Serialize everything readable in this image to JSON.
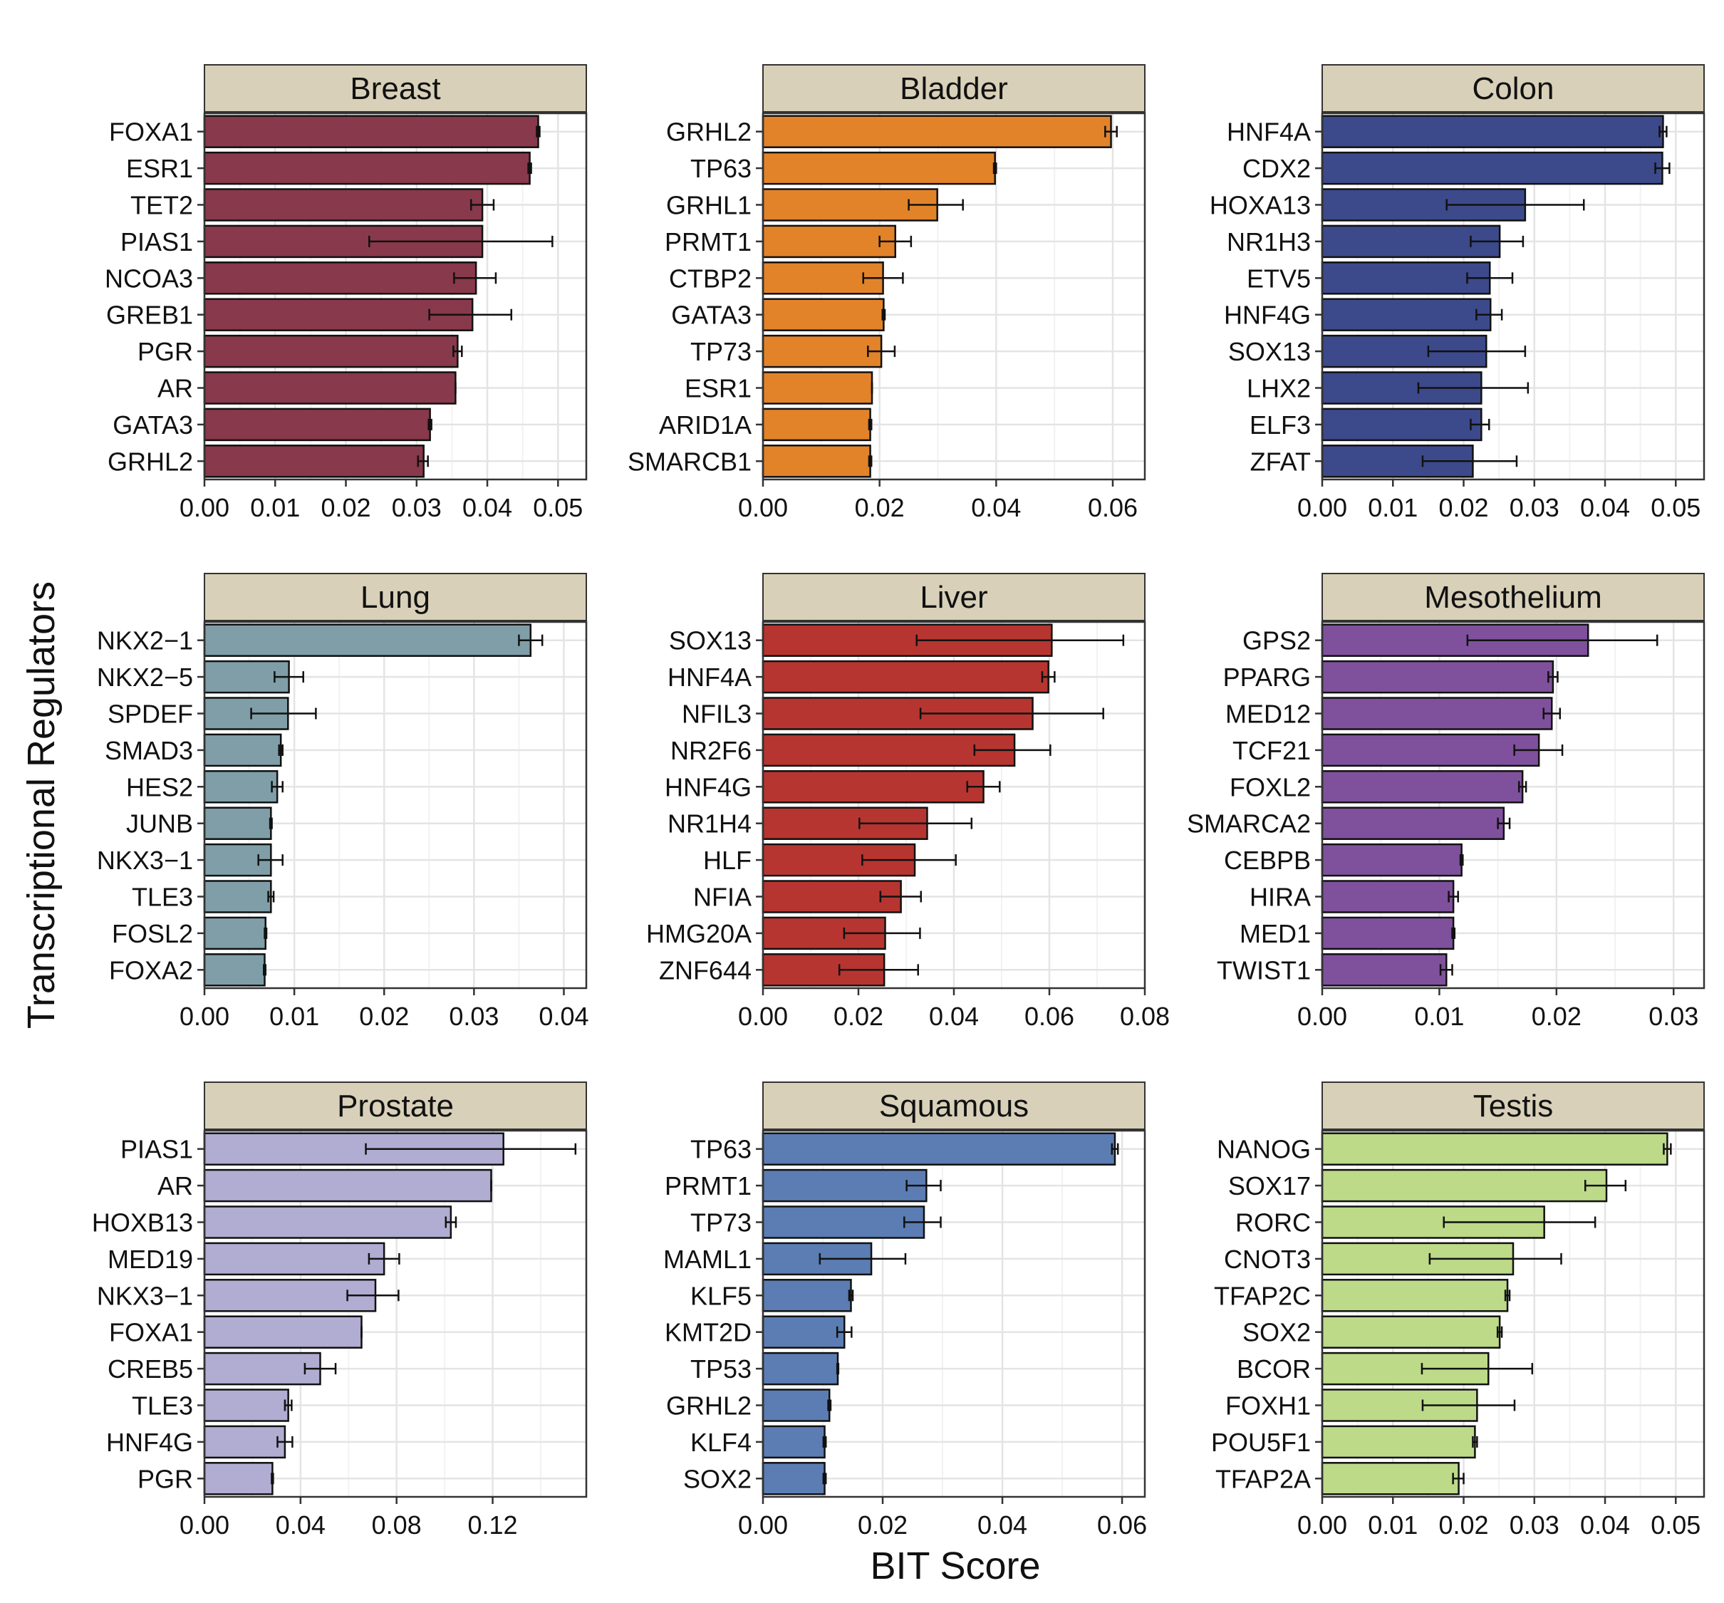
{
  "figure": {
    "xlabel": "BIT Score",
    "ylabel": "Transcriptional Regulators"
  },
  "chart_data": [
    {
      "type": "bar",
      "title": "Breast",
      "color": "#88394b",
      "xlim": [
        0,
        0.054
      ],
      "ticks": [
        0.0,
        0.01,
        0.02,
        0.03,
        0.04,
        0.05
      ],
      "tick_labels": [
        "0.00",
        "0.01",
        "0.02",
        "0.03",
        "0.04",
        "0.05"
      ],
      "categories": [
        "FOXA1",
        "ESR1",
        "TET2",
        "PIAS1",
        "NCOA3",
        "GREB1",
        "PGR",
        "AR",
        "GATA3",
        "GRHL2"
      ],
      "values": [
        0.0472,
        0.046,
        0.0393,
        0.0393,
        0.0384,
        0.0379,
        0.0358,
        0.0355,
        0.0319,
        0.031
      ],
      "error_low": [
        0.047,
        0.0458,
        0.0377,
        0.0233,
        0.0353,
        0.0318,
        0.0352,
        0.0355,
        0.0317,
        0.0302
      ],
      "error_high": [
        0.0474,
        0.0462,
        0.0409,
        0.0492,
        0.0412,
        0.0434,
        0.0364,
        0.0355,
        0.0321,
        0.0316
      ]
    },
    {
      "type": "bar",
      "title": "Bladder",
      "color": "#e2832a",
      "xlim": [
        0,
        0.0655
      ],
      "ticks": [
        0.0,
        0.02,
        0.04,
        0.06
      ],
      "tick_labels": [
        "0.00",
        "0.02",
        "0.04",
        "0.06"
      ],
      "categories": [
        "GRHL2",
        "TP63",
        "GRHL1",
        "PRMT1",
        "CTBP2",
        "GATA3",
        "TP73",
        "ESR1",
        "ARID1A",
        "SMARCB1"
      ],
      "values": [
        0.0597,
        0.0398,
        0.0299,
        0.0227,
        0.0206,
        0.0207,
        0.0203,
        0.0187,
        0.0184,
        0.0184
      ],
      "error_low": [
        0.0587,
        0.0396,
        0.025,
        0.02,
        0.0172,
        0.0205,
        0.018,
        0.0187,
        0.0182,
        0.0182
      ],
      "error_high": [
        0.0607,
        0.04,
        0.0343,
        0.0254,
        0.024,
        0.0209,
        0.0226,
        0.0187,
        0.0186,
        0.0186
      ]
    },
    {
      "type": "bar",
      "title": "Colon",
      "color": "#3c4a8b",
      "xlim": [
        0,
        0.054
      ],
      "ticks": [
        0.0,
        0.01,
        0.02,
        0.03,
        0.04,
        0.05
      ],
      "tick_labels": [
        "0.00",
        "0.01",
        "0.02",
        "0.03",
        "0.04",
        "0.05"
      ],
      "categories": [
        "HNF4A",
        "CDX2",
        "HOXA13",
        "NR1H3",
        "ETV5",
        "HNF4G",
        "SOX13",
        "LHX2",
        "ELF3",
        "ZFAT"
      ],
      "values": [
        0.0482,
        0.0481,
        0.0287,
        0.0251,
        0.0237,
        0.0238,
        0.0232,
        0.0225,
        0.0225,
        0.0213
      ],
      "error_low": [
        0.0477,
        0.0471,
        0.0176,
        0.021,
        0.0205,
        0.0218,
        0.015,
        0.0136,
        0.021,
        0.0142
      ],
      "error_high": [
        0.0487,
        0.0491,
        0.037,
        0.0284,
        0.0269,
        0.0254,
        0.0287,
        0.0291,
        0.0236,
        0.0275
      ]
    },
    {
      "type": "bar",
      "title": "Lung",
      "color": "#7f9ea8",
      "xlim": [
        0,
        0.0425
      ],
      "ticks": [
        0.0,
        0.01,
        0.02,
        0.03,
        0.04
      ],
      "tick_labels": [
        "0.00",
        "0.01",
        "0.02",
        "0.03",
        "0.04"
      ],
      "categories": [
        "NKX2−1",
        "NKX2−5",
        "SPDEF",
        "SMAD3",
        "HES2",
        "JUNB",
        "NKX3−1",
        "TLE3",
        "FOSL2",
        "FOXA2"
      ],
      "values": [
        0.0363,
        0.0094,
        0.0093,
        0.0085,
        0.0081,
        0.0074,
        0.0074,
        0.0074,
        0.0068,
        0.0067
      ],
      "error_low": [
        0.035,
        0.0078,
        0.0052,
        0.0083,
        0.0075,
        0.0073,
        0.006,
        0.0071,
        0.0067,
        0.0066
      ],
      "error_high": [
        0.0376,
        0.011,
        0.0124,
        0.0087,
        0.0087,
        0.0075,
        0.0087,
        0.0077,
        0.0069,
        0.0068
      ]
    },
    {
      "type": "bar",
      "title": "Liver",
      "color": "#b73530",
      "xlim": [
        0,
        0.08
      ],
      "ticks": [
        0.0,
        0.02,
        0.04,
        0.06,
        0.08
      ],
      "tick_labels": [
        "0.00",
        "0.02",
        "0.04",
        "0.06",
        "0.08"
      ],
      "categories": [
        "SOX13",
        "HNF4A",
        "NFIL3",
        "NR2F6",
        "HNF4G",
        "NR1H4",
        "HLF",
        "NFIA",
        "HMG20A",
        "ZNF644"
      ],
      "values": [
        0.0605,
        0.0598,
        0.0565,
        0.0527,
        0.0462,
        0.0344,
        0.0318,
        0.0289,
        0.0256,
        0.0254
      ],
      "error_low": [
        0.0322,
        0.0585,
        0.033,
        0.0443,
        0.0428,
        0.0202,
        0.0208,
        0.0246,
        0.017,
        0.016
      ],
      "error_high": [
        0.0755,
        0.0611,
        0.0713,
        0.0602,
        0.0496,
        0.0437,
        0.0404,
        0.0331,
        0.0329,
        0.0325
      ]
    },
    {
      "type": "bar",
      "title": "Mesothelium",
      "color": "#7f519c",
      "xlim": [
        0,
        0.0326
      ],
      "ticks": [
        0.0,
        0.01,
        0.02,
        0.03
      ],
      "tick_labels": [
        "0.00",
        "0.01",
        "0.02",
        "0.03"
      ],
      "categories": [
        "GPS2",
        "PPARG",
        "MED12",
        "TCF21",
        "FOXL2",
        "SMARCA2",
        "CEBPB",
        "HIRA",
        "MED1",
        "TWIST1"
      ],
      "values": [
        0.0227,
        0.0197,
        0.0196,
        0.0185,
        0.0171,
        0.0155,
        0.0119,
        0.0112,
        0.0112,
        0.0106
      ],
      "error_low": [
        0.0124,
        0.0193,
        0.0189,
        0.0164,
        0.0168,
        0.015,
        0.0118,
        0.0108,
        0.0111,
        0.0101
      ],
      "error_high": [
        0.0286,
        0.0201,
        0.0203,
        0.0205,
        0.0174,
        0.016,
        0.012,
        0.0116,
        0.0113,
        0.0111
      ]
    },
    {
      "type": "bar",
      "title": "Prostate",
      "color": "#b1acd2",
      "xlim": [
        0,
        0.159
      ],
      "ticks": [
        0.0,
        0.04,
        0.08,
        0.12
      ],
      "tick_labels": [
        "0.00",
        "0.04",
        "0.08",
        "0.12"
      ],
      "categories": [
        "PIAS1",
        "AR",
        "HOXB13",
        "MED19",
        "NKX3−1",
        "FOXA1",
        "CREB5",
        "TLE3",
        "HNF4G",
        "PGR"
      ],
      "values": [
        0.1245,
        0.1194,
        0.1026,
        0.0748,
        0.0712,
        0.0654,
        0.0482,
        0.0349,
        0.0335,
        0.0283
      ],
      "error_low": [
        0.0672,
        0.1194,
        0.1005,
        0.0685,
        0.0595,
        0.0654,
        0.0418,
        0.0335,
        0.0304,
        0.028
      ],
      "error_high": [
        0.1545,
        0.1194,
        0.1047,
        0.0811,
        0.0808,
        0.0654,
        0.0546,
        0.0363,
        0.0366,
        0.0286
      ]
    },
    {
      "type": "bar",
      "title": "Squamous",
      "color": "#5b7db3",
      "xlim": [
        0,
        0.0638
      ],
      "ticks": [
        0.0,
        0.02,
        0.04,
        0.06
      ],
      "tick_labels": [
        "0.00",
        "0.02",
        "0.04",
        "0.06"
      ],
      "categories": [
        "TP63",
        "PRMT1",
        "TP73",
        "MAML1",
        "KLF5",
        "KMT2D",
        "TP53",
        "GRHL2",
        "KLF4",
        "SOX2"
      ],
      "values": [
        0.0588,
        0.0273,
        0.0269,
        0.0181,
        0.0147,
        0.0136,
        0.0125,
        0.0111,
        0.0103,
        0.0103
      ],
      "error_low": [
        0.0583,
        0.024,
        0.0236,
        0.0095,
        0.0144,
        0.0124,
        0.0124,
        0.0109,
        0.0101,
        0.0101
      ],
      "error_high": [
        0.0593,
        0.0297,
        0.0297,
        0.0238,
        0.015,
        0.0148,
        0.0126,
        0.0113,
        0.0105,
        0.0105
      ]
    },
    {
      "type": "bar",
      "title": "Testis",
      "color": "#bcda88",
      "xlim": [
        0,
        0.054
      ],
      "ticks": [
        0.0,
        0.01,
        0.02,
        0.03,
        0.04,
        0.05
      ],
      "tick_labels": [
        "0.00",
        "0.01",
        "0.02",
        "0.03",
        "0.04",
        "0.05"
      ],
      "categories": [
        "NANOG",
        "SOX17",
        "RORC",
        "CNOT3",
        "TFAP2C",
        "SOX2",
        "BCOR",
        "FOXH1",
        "POU5F1",
        "TFAP2A"
      ],
      "values": [
        0.0488,
        0.0402,
        0.0314,
        0.027,
        0.0262,
        0.0251,
        0.0235,
        0.0219,
        0.0216,
        0.0193
      ],
      "error_low": [
        0.0483,
        0.0372,
        0.0172,
        0.0152,
        0.0259,
        0.0248,
        0.0141,
        0.0142,
        0.0213,
        0.0185
      ],
      "error_high": [
        0.0493,
        0.0429,
        0.0386,
        0.0338,
        0.0265,
        0.0254,
        0.0297,
        0.0272,
        0.0219,
        0.02
      ]
    }
  ]
}
